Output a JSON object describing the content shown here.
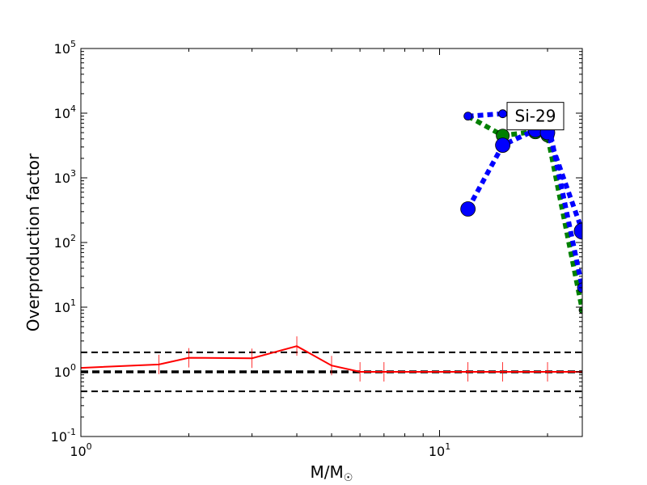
{
  "chart_data": {
    "type": "line",
    "title": "",
    "xlabel": "M/M",
    "xlabel_subscript": "☉",
    "ylabel": "Overproduction factor",
    "xscale": "log",
    "yscale": "log",
    "xlim": [
      1,
      25
    ],
    "ylim": [
      0.1,
      100000
    ],
    "grid": false,
    "legend": "none",
    "x_ticks": [
      {
        "value": 1,
        "base": "10",
        "exp": "0"
      },
      {
        "value": 10,
        "base": "10",
        "exp": "1"
      }
    ],
    "y_ticks": [
      {
        "value": 0.1,
        "base": "10",
        "exp": "-1"
      },
      {
        "value": 1,
        "base": "10",
        "exp": "0"
      },
      {
        "value": 10,
        "base": "10",
        "exp": "1"
      },
      {
        "value": 100,
        "base": "10",
        "exp": "2"
      },
      {
        "value": 1000,
        "base": "10",
        "exp": "3"
      },
      {
        "value": 10000,
        "base": "10",
        "exp": "4"
      },
      {
        "value": 100000,
        "base": "10",
        "exp": "5"
      }
    ],
    "annotation": {
      "text": "Si-29",
      "x": 18.5,
      "y": 9000
    },
    "reference_lines": [
      {
        "y": 2.0,
        "style": "dashed",
        "weight": "thin"
      },
      {
        "y": 1.0,
        "style": "dashed",
        "weight": "thick"
      },
      {
        "y": 0.5,
        "style": "dashed",
        "weight": "thin"
      }
    ],
    "series": [
      {
        "color": "#ff0000",
        "style": "solid",
        "marker": "vline",
        "x": [
          1.0,
          1.65,
          2.0,
          3.0,
          4.0,
          5.0,
          6.0,
          7.0,
          12.0,
          15.0,
          20.0,
          25.0
        ],
        "y": [
          1.15,
          1.3,
          1.65,
          1.62,
          2.5,
          1.25,
          1.0,
          1.0,
          1.0,
          1.0,
          1.0,
          1.0
        ]
      },
      {
        "color": "#008000",
        "style": "dotted",
        "marker": "circle",
        "x": [
          12.0,
          15.0,
          18.5,
          20.0,
          25.0
        ],
        "y": [
          9000,
          4500,
          5200,
          4500,
          9
        ],
        "sizes": [
          3,
          8,
          9,
          8,
          4
        ]
      },
      {
        "color": "#0000ff",
        "style": "dotted",
        "marker": "circle",
        "x": [
          12.0,
          15.0,
          18.5,
          20.0,
          25.0
        ],
        "y": [
          330,
          3200,
          5500,
          5000,
          150
        ],
        "sizes": [
          9,
          9,
          9,
          9,
          10
        ]
      },
      {
        "color": "#0000ff",
        "style": "dotted",
        "marker": "circle",
        "x": [
          12.0,
          15.0,
          20.0,
          25.0
        ],
        "y": [
          9000,
          9800,
          8000,
          20
        ],
        "sizes": [
          5,
          5,
          6,
          6
        ]
      }
    ]
  }
}
